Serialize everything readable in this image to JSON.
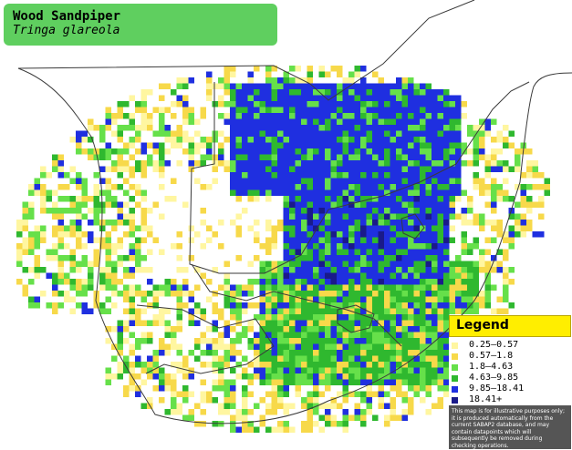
{
  "title": {
    "common_name": "Wood Sandpiper",
    "scientific_name": "Tringa glareola"
  },
  "colors": {
    "background": "#ffffff",
    "title_box": "#5fcf5f",
    "legend_header": "#ffee00",
    "legend_note_bg": "#555555",
    "borders": "#333333"
  },
  "legend": {
    "heading": "Legend",
    "items": [
      {
        "label": "0.25–0.57",
        "color": "#fff6a0"
      },
      {
        "label": "0.57–1.8",
        "color": "#f7d94a"
      },
      {
        "label": "1.8–4.63",
        "color": "#66e04a"
      },
      {
        "label": "4.63–9.85",
        "color": "#2fb82f"
      },
      {
        "label": "9.85–18.41",
        "color": "#1f2fe0"
      },
      {
        "label": "18.41+",
        "color": "#1a1a8a"
      }
    ],
    "note": "This map is for illustrative purposes only; it is produced automatically from the current SABAP2 database, and may contain datapoints which will subsequently be removed during checking operations."
  }
}
